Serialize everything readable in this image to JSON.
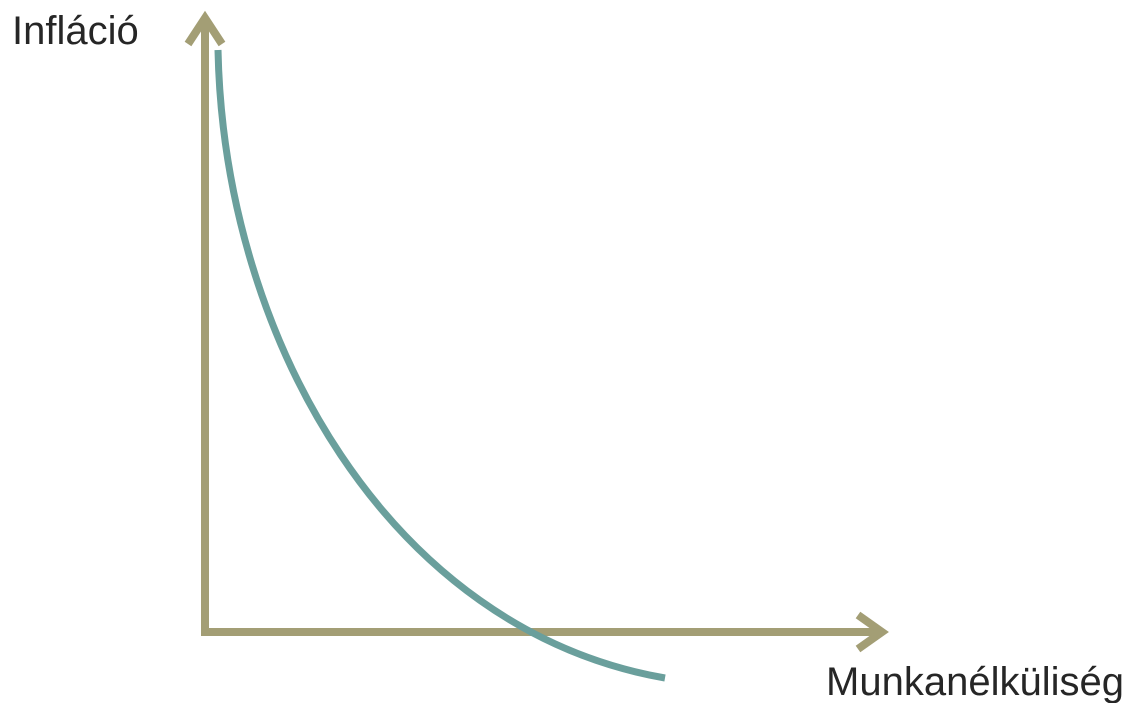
{
  "axes": {
    "y_label": "Infláció",
    "x_label": "Munkanélküliség"
  }
}
